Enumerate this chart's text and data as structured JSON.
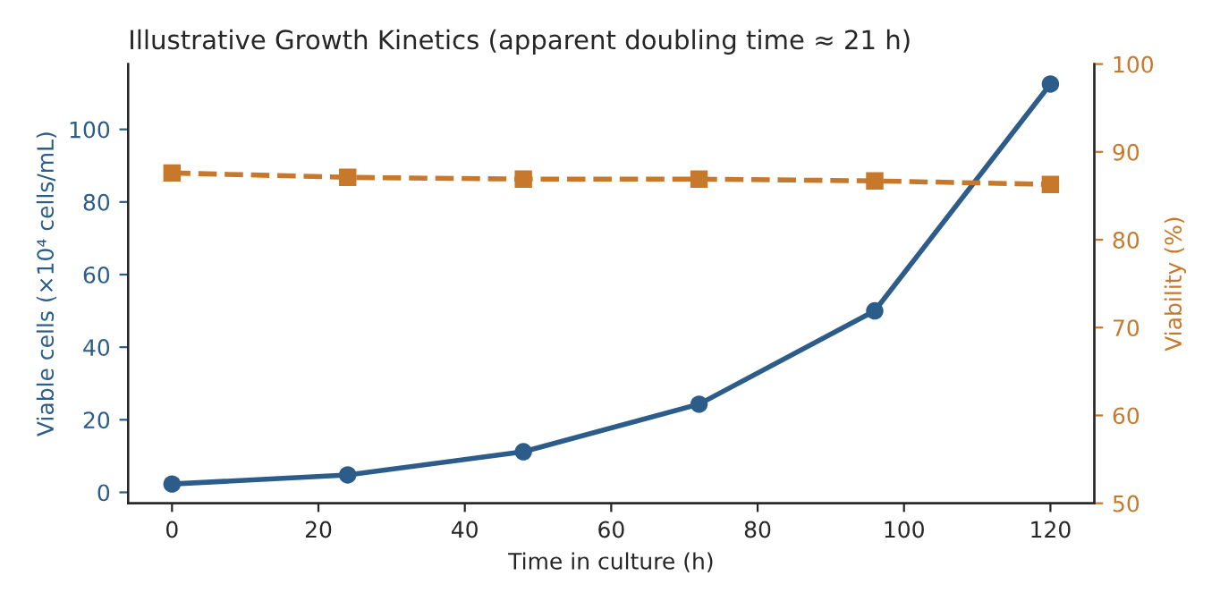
{
  "chart_data": {
    "type": "line",
    "title": "Illustrative Growth Kinetics (apparent doubling time ≈ 21 h)",
    "xlabel": "Time in culture (h)",
    "ylabel": "Viable cells (×10⁴ cells/mL)",
    "y2label": "Viability (%)",
    "x": [
      0,
      24,
      48,
      72,
      96,
      120
    ],
    "series": [
      {
        "color": "#2b5c8a",
        "values": [
          2.3,
          4.8,
          11.2,
          24.3,
          50,
          112.5
        ],
        "marker": "circle",
        "line_style": "solid"
      },
      {
        "color": "#c8782a",
        "values": [
          87.6,
          87.1,
          86.9,
          86.9,
          86.7,
          86.3
        ],
        "marker": "square",
        "line_style": "dashed",
        "axis": "y2"
      }
    ],
    "xlim": [
      -6,
      126
    ],
    "xticks": [
      0,
      20,
      40,
      60,
      80,
      100,
      120
    ],
    "ylim": [
      -3,
      118
    ],
    "yticks": [
      0,
      20,
      40,
      60,
      80,
      100
    ],
    "y2lim": [
      50,
      100
    ],
    "y2ticks": [
      50,
      60,
      70,
      80,
      90,
      100
    ]
  }
}
